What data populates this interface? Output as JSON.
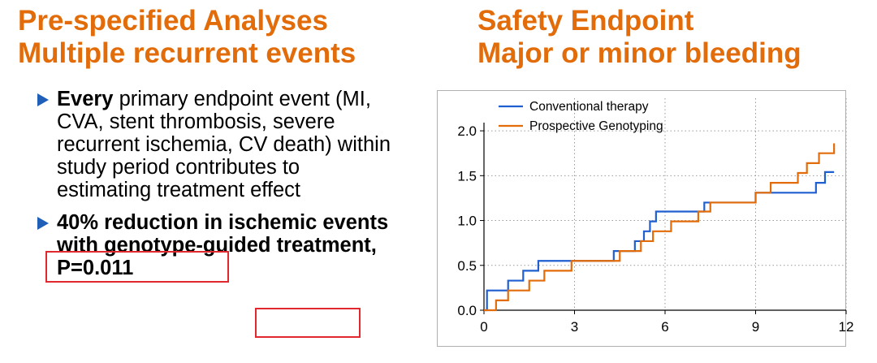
{
  "left": {
    "title_line1": "Pre-specified Analyses",
    "title_line2": "Multiple recurrent events",
    "bullet1": {
      "bold": "Every",
      "rest": " primary endpoint event (MI, CVA, stent thrombosis, severe recurrent ischemia, CV death) within study period contributes to estimating treatment effect"
    },
    "bullet2": {
      "part1": "40% reduction",
      "part2": " in ischemic events with genotype-guided treatment, ",
      "part3": "P=0.011"
    }
  },
  "right": {
    "title_line1": "Safety Endpoint",
    "title_line2": "Major or minor bleeding"
  },
  "colors": {
    "title": "#E36C0A",
    "bullet_arrow": "#1F5FB8",
    "highlight_box": "#E0282E"
  },
  "chart_data": {
    "type": "line",
    "step": true,
    "xlim": [
      0,
      12
    ],
    "ylim": [
      0,
      2.2
    ],
    "xticks": [
      0,
      3,
      6,
      9,
      12
    ],
    "yticks": [
      0.0,
      0.5,
      1.0,
      1.5,
      2.0
    ],
    "xtick_labels": [
      "0",
      "3",
      "6",
      "9",
      "12"
    ],
    "ytick_labels": [
      "0.0",
      "0.5",
      "1.0",
      "1.5",
      "2.0"
    ],
    "grid": true,
    "legend": "top-left",
    "series": [
      {
        "name": "Conventional therapy",
        "color": "#1F5FD0",
        "x": [
          0,
          0.1,
          0.8,
          1.3,
          1.8,
          2.3,
          4.3,
          5.0,
          5.3,
          5.5,
          5.7,
          7.3,
          9.0,
          11.0,
          11.3,
          11.6
        ],
        "y": [
          0,
          0.22,
          0.33,
          0.44,
          0.55,
          0.55,
          0.66,
          0.77,
          0.88,
          0.99,
          1.1,
          1.2,
          1.31,
          1.42,
          1.54,
          1.54
        ]
      },
      {
        "name": "Prospective Genotyping",
        "color": "#E36C0A",
        "x": [
          0,
          0.4,
          0.8,
          1.5,
          2.0,
          2.9,
          4.5,
          5.2,
          5.6,
          6.2,
          7.1,
          7.5,
          9.0,
          9.5,
          10.4,
          10.7,
          11.1,
          11.6
        ],
        "y": [
          0,
          0.11,
          0.22,
          0.33,
          0.44,
          0.55,
          0.66,
          0.77,
          0.88,
          0.99,
          1.1,
          1.2,
          1.31,
          1.42,
          1.53,
          1.64,
          1.75,
          1.86
        ]
      }
    ]
  }
}
